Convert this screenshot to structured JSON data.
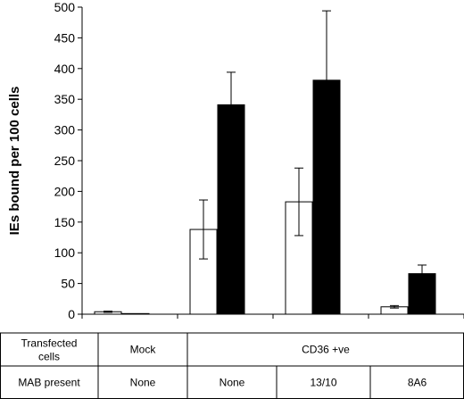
{
  "chart_data": {
    "type": "bar",
    "ylabel": "IEs bound per 100 cells",
    "ylim": [
      0,
      500
    ],
    "yticks": [
      0,
      50,
      100,
      150,
      200,
      250,
      300,
      350,
      400,
      450,
      500
    ],
    "ytick_labels": [
      "0",
      "50",
      "100",
      "150",
      "200",
      "250",
      "300",
      "350",
      "400",
      "450",
      "500"
    ],
    "groups": 4,
    "series": [
      {
        "fill": "#ffffff",
        "values": [
          4,
          138,
          183,
          12
        ],
        "errors": [
          1,
          48,
          55,
          2
        ]
      },
      {
        "fill": "#000000",
        "values": [
          1,
          341,
          381,
          66
        ],
        "errors": [
          0,
          53,
          113,
          14
        ]
      }
    ]
  },
  "table": {
    "rows": [
      {
        "header": "Transfected cells",
        "cells": [
          {
            "text": "Mock",
            "span": 1
          },
          {
            "text": "CD36 +ve",
            "span": 3
          }
        ]
      },
      {
        "header": "MAB present",
        "cells": [
          {
            "text": "None",
            "span": 1
          },
          {
            "text": "None",
            "span": 1
          },
          {
            "text": "13/10",
            "span": 1
          },
          {
            "text": "8A6",
            "span": 1
          }
        ]
      }
    ]
  }
}
